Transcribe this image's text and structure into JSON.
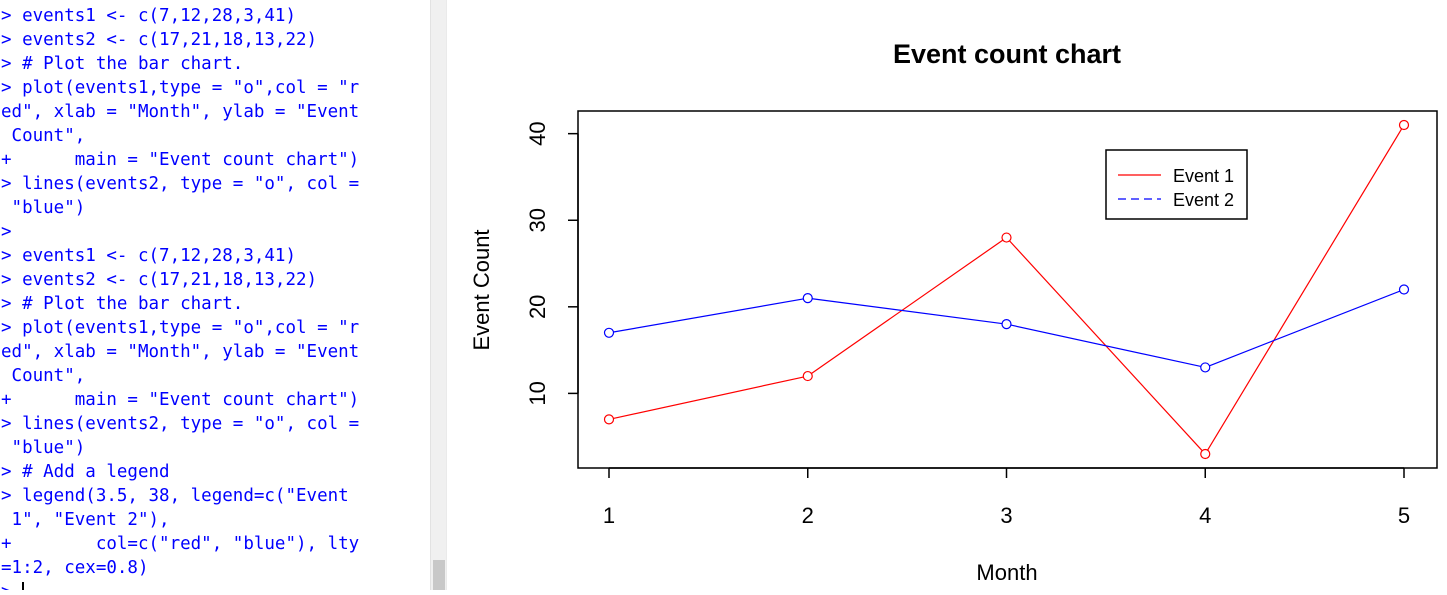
{
  "console": {
    "lines": [
      "> events1 <- c(7,12,28,3,41)",
      "> events2 <- c(17,21,18,13,22)",
      "> # Plot the bar chart.",
      "> plot(events1,type = \"o\",col = \"r",
      "ed\", xlab = \"Month\", ylab = \"Event",
      " Count\",",
      "+      main = \"Event count chart\")",
      "> lines(events2, type = \"o\", col =",
      " \"blue\")",
      ">",
      "> events1 <- c(7,12,28,3,41)",
      "> events2 <- c(17,21,18,13,22)",
      "> # Plot the bar chart.",
      "> plot(events1,type = \"o\",col = \"r",
      "ed\", xlab = \"Month\", ylab = \"Event",
      " Count\",",
      "+      main = \"Event count chart\")",
      "> lines(events2, type = \"o\", col =",
      " \"blue\")",
      "> # Add a legend",
      "> legend(3.5, 38, legend=c(\"Event",
      " 1\", \"Event 2\"),",
      "+        col=c(\"red\", \"blue\"), lty",
      "=1:2, cex=0.8)"
    ],
    "prompt": "> ",
    "text_color": "#0000ff"
  },
  "chart_data": {
    "type": "line",
    "title": "Event count chart",
    "xlabel": "Month",
    "ylabel": "Event Count",
    "x": [
      1,
      2,
      3,
      4,
      5
    ],
    "xticks": [
      "1",
      "2",
      "3",
      "4",
      "5"
    ],
    "yticks": [
      "10",
      "20",
      "30",
      "40"
    ],
    "ylim": [
      3,
      41
    ],
    "xlim": [
      1,
      5
    ],
    "series": [
      {
        "name": "Event 1",
        "values": [
          7,
          12,
          28,
          3,
          41
        ],
        "color": "#ff0000",
        "line": "solid",
        "marker": "open-circle"
      },
      {
        "name": "Event 2",
        "values": [
          17,
          21,
          18,
          13,
          22
        ],
        "color": "#0000ff",
        "line": "dashed",
        "marker": "open-circle"
      }
    ],
    "legend": {
      "position": "top-right",
      "entries": [
        "Event 1",
        "Event 2"
      ]
    },
    "grid": false
  }
}
